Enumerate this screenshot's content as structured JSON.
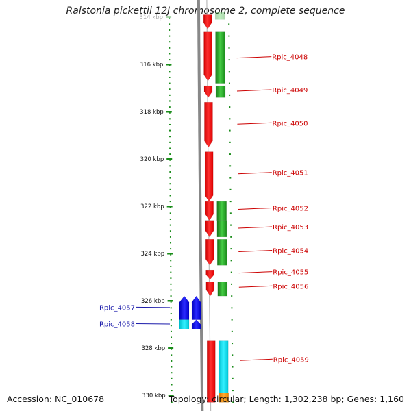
{
  "title": "Ralstonia pickettii 12J chromosome 2, complete sequence",
  "footer": {
    "accession": "Accession: NC_010678",
    "summary": "Topology: circular; Length: 1,302,238 bp; Genes: 1,160"
  },
  "axis": {
    "unit": "kbp",
    "ticks": [
      {
        "kbp": 314,
        "label": "314 kbp",
        "faded": true
      },
      {
        "kbp": 316,
        "label": "316 kbp"
      },
      {
        "kbp": 318,
        "label": "318 kbp"
      },
      {
        "kbp": 320,
        "label": "320 kbp"
      },
      {
        "kbp": 322,
        "label": "322 kbp"
      },
      {
        "kbp": 324,
        "label": "324 kbp"
      },
      {
        "kbp": 326,
        "label": "326 kbp"
      },
      {
        "kbp": 328,
        "label": "328 kbp"
      },
      {
        "kbp": 330,
        "label": "330 kbp"
      }
    ]
  },
  "colors": {
    "cds_red": "#ff1a1a",
    "green": "#22aa22",
    "blue": "#1a1aee",
    "cyan": "#12e0ee",
    "orange": "#ff9a1a",
    "tick_green": "#1a8c1a",
    "label_red": "#cc0000",
    "label_blue": "#1a1aaa",
    "backbone": "#888888"
  },
  "labels": [
    {
      "text": "Rpic_4048",
      "kbp": 315.7,
      "color": "red"
    },
    {
      "text": "Rpic_4049",
      "kbp": 317.1,
      "color": "red"
    },
    {
      "text": "Rpic_4050",
      "kbp": 318.5,
      "color": "red"
    },
    {
      "text": "Rpic_4051",
      "kbp": 320.6,
      "color": "red"
    },
    {
      "text": "Rpic_4052",
      "kbp": 322.1,
      "color": "red"
    },
    {
      "text": "Rpic_4053",
      "kbp": 322.9,
      "color": "red"
    },
    {
      "text": "Rpic_4054",
      "kbp": 323.9,
      "color": "red"
    },
    {
      "text": "Rpic_4055",
      "kbp": 324.8,
      "color": "red"
    },
    {
      "text": "Rpic_4056",
      "kbp": 325.4,
      "color": "red"
    },
    {
      "text": "Rpic_4057",
      "kbp": 326.3,
      "color": "blue"
    },
    {
      "text": "Rpic_4058",
      "kbp": 327.0,
      "color": "blue"
    },
    {
      "text": "Rpic_4059",
      "kbp": 328.5,
      "color": "red"
    }
  ],
  "features": [
    {
      "track": "cds",
      "start": 313.9,
      "end": 314.5,
      "color": "cds_red",
      "arrow": true
    },
    {
      "track": "gene",
      "start": 313.8,
      "end": 314.1,
      "color": "green",
      "faded": true
    },
    {
      "track": "cds",
      "start": 314.6,
      "end": 316.7,
      "color": "cds_red",
      "arrow": true
    },
    {
      "track": "gene",
      "start": 314.6,
      "end": 316.8,
      "color": "green"
    },
    {
      "track": "cds",
      "start": 316.9,
      "end": 317.4,
      "color": "cds_red",
      "arrow": true
    },
    {
      "track": "gene",
      "start": 316.9,
      "end": 317.4,
      "color": "green"
    },
    {
      "track": "cds",
      "start": 317.6,
      "end": 319.5,
      "color": "cds_red",
      "arrow": true
    },
    {
      "track": "cds",
      "start": 319.7,
      "end": 321.8,
      "color": "cds_red",
      "arrow": true
    },
    {
      "track": "cds",
      "start": 321.8,
      "end": 322.6,
      "color": "cds_red",
      "arrow": true
    },
    {
      "track": "gene",
      "start": 321.8,
      "end": 322.6,
      "color": "green"
    },
    {
      "track": "cds",
      "start": 322.6,
      "end": 323.3,
      "color": "cds_red",
      "arrow": true
    },
    {
      "track": "gene",
      "start": 322.6,
      "end": 323.3,
      "color": "green"
    },
    {
      "track": "cds",
      "start": 323.4,
      "end": 324.5,
      "color": "cds_red",
      "arrow": true
    },
    {
      "track": "gene",
      "start": 323.4,
      "end": 324.5,
      "color": "green"
    },
    {
      "track": "cds",
      "start": 324.7,
      "end": 325.1,
      "color": "cds_red",
      "arrow": true
    },
    {
      "track": "cds",
      "start": 325.2,
      "end": 325.8,
      "color": "cds_red",
      "arrow": true
    },
    {
      "track": "gene",
      "start": 325.2,
      "end": 325.8,
      "color": "green"
    },
    {
      "track": "rev_gene",
      "start": 325.8,
      "end": 326.8,
      "color": "blue",
      "arrowUp": true
    },
    {
      "track": "rev_cds",
      "start": 325.8,
      "end": 326.8,
      "color": "blue",
      "arrowUp": true
    },
    {
      "track": "rev_gene",
      "start": 326.8,
      "end": 327.2,
      "color": "cyan"
    },
    {
      "track": "rev_cds",
      "start": 326.8,
      "end": 327.2,
      "color": "blue",
      "arrowUp": true
    },
    {
      "track": "cds",
      "start": 327.7,
      "end": 330.3,
      "color": "cds_red"
    },
    {
      "track": "gene",
      "start": 327.7,
      "end": 329.9,
      "color": "cyan"
    },
    {
      "track": "gene",
      "start": 329.9,
      "end": 330.3,
      "color": "orange"
    }
  ]
}
